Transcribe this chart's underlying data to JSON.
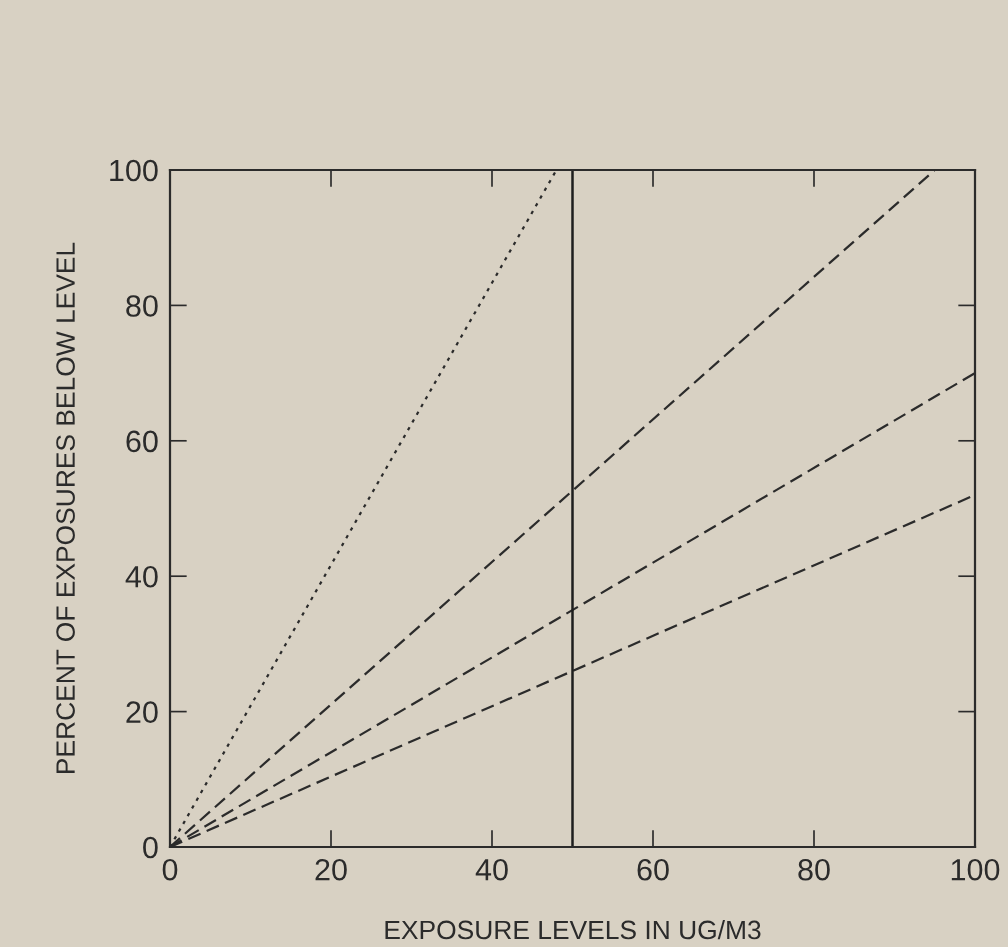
{
  "chart_data": {
    "type": "line",
    "xlabel": "EXPOSURE LEVELS IN UG/M3",
    "ylabel": "PERCENT OF EXPOSURES BELOW LEVEL",
    "series": [
      {
        "x": [
          0,
          48
        ],
        "values": [
          0,
          100
        ],
        "color": "#2b2b2b",
        "line_style": "dotted"
      },
      {
        "x": [
          0,
          95
        ],
        "values": [
          0,
          100
        ],
        "color": "#2b2b2b",
        "line_style": "dashed"
      },
      {
        "x": [
          0,
          100
        ],
        "values": [
          0,
          70
        ],
        "color": "#2b2b2b",
        "line_style": "dashed"
      },
      {
        "x": [
          0,
          100
        ],
        "values": [
          0,
          52
        ],
        "color": "#2b2b2b",
        "line_style": "dashed"
      }
    ],
    "xlim": [
      0,
      100
    ],
    "ylim": [
      0,
      100
    ],
    "xticks": [
      0,
      20,
      40,
      60,
      80,
      100
    ],
    "yticks": [
      0,
      20,
      40,
      60,
      80,
      100
    ],
    "ref_lines": [
      {
        "axis": "x",
        "value": 50,
        "color": "#1e1e1e",
        "line_style": "solid"
      }
    ],
    "grid": false,
    "legend": false,
    "marker": "none"
  }
}
